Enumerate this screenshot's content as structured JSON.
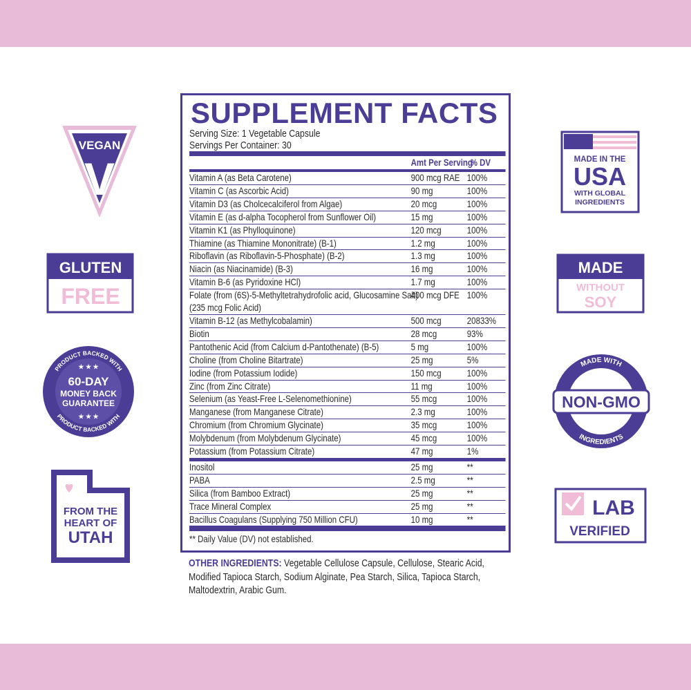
{
  "vegan": {
    "label": "VEGAN",
    "mark": "V"
  },
  "gluten_free": {
    "line1": "GLUTEN",
    "line2": "FREE"
  },
  "guarantee": {
    "ring_top": "PRODUCT BACKED WITH",
    "ring_bottom": "PRODUCT BACKED WITH",
    "stars_top": "★ ★ ★",
    "stars_bottom": "★ ★ ★",
    "lines": [
      "60-DAY",
      "MONEY BACK",
      "GUARANTEE"
    ]
  },
  "utah": {
    "lines": [
      "FROM THE",
      "HEART OF",
      "UTAH"
    ]
  },
  "usa": {
    "lines": [
      "MADE IN THE",
      "USA",
      "WITH GLOBAL",
      "INGREDIENTS"
    ]
  },
  "soy": {
    "lines": [
      "MADE",
      "WITHOUT",
      "SOY"
    ]
  },
  "non_gmo": {
    "ring_top": "MADE WITH",
    "label": "NON-GMO",
    "ring_bottom": "INGREDIENTS"
  },
  "lab": {
    "line1": "LAB",
    "line2": "VERIFIED"
  },
  "facts": {
    "title": "SUPPLEMENT FACTS",
    "serving_size": "Serving Size: 1 Vegetable Capsule",
    "servings_per_container": "Servings Per Container: 30",
    "header": {
      "amount": "Amt Per Serving",
      "dv": "% DV"
    },
    "rows": [
      {
        "name": "Vitamin A (as Beta Carotene)",
        "amount": "900 mcg RAE",
        "dv": "100%"
      },
      {
        "name": "Vitamin C (as Ascorbic Acid)",
        "amount": "90 mg",
        "dv": "100%"
      },
      {
        "name": "Vitamin D3 (as Cholcecalciferol from Algae)",
        "amount": "20 mcg",
        "dv": "100%"
      },
      {
        "name": "Vitamin E (as d-alpha Tocopherol from Sunflower Oil)",
        "amount": "15 mg",
        "dv": "100%"
      },
      {
        "name": "Vitamin K1 (as Phylloquinone)",
        "amount": "120 mcg",
        "dv": "100%"
      },
      {
        "name": "Thiamine (as Thiamine Mononitrate) (B-1)",
        "amount": "1.2 mg",
        "dv": "100%"
      },
      {
        "name": "Riboflavin (as Riboflavin-5-Phosphate) (B-2)",
        "amount": "1.3 mg",
        "dv": "100%"
      },
      {
        "name": "Niacin (as Niacinamide) (B-3)",
        "amount": "16 mg",
        "dv": "100%"
      },
      {
        "name": "Vitamin B-6 (as Pyridoxine HCl)",
        "amount": "1.7 mg",
        "dv": "100%"
      },
      {
        "name": "Folate (from (6S)-5-Methyltetrahydrofolic acid, Glucosamine Salt)",
        "detail": "(235 mcg Folic Acid)",
        "amount": "400 mcg DFE",
        "dv": "100%"
      },
      {
        "name": "Vitamin B-12 (as Methylcobalamin)",
        "amount": "500 mcg",
        "dv": "20833%"
      },
      {
        "name": "Biotin",
        "amount": "28 mcg",
        "dv": "93%"
      },
      {
        "name": "Pantothenic Acid (from Calcium d-Pantothenate) (B-5)",
        "amount": "5 mg",
        "dv": "100%"
      },
      {
        "name": "Choline (from Choline Bitartrate)",
        "amount": "25 mg",
        "dv": "5%"
      },
      {
        "name": "Iodine (from Potassium Iodide)",
        "amount": "150 mcg",
        "dv": "100%"
      },
      {
        "name": "Zinc (from Zinc Citrate)",
        "amount": "11 mg",
        "dv": "100%"
      },
      {
        "name": "Selenium (as Yeast-Free L-Selenomethionine)",
        "amount": "55 mcg",
        "dv": "100%"
      },
      {
        "name": "Manganese (from Manganese Citrate)",
        "amount": "2.3 mg",
        "dv": "100%"
      },
      {
        "name": "Chromium (from Chromium Glycinate)",
        "amount": "35 mcg",
        "dv": "100%"
      },
      {
        "name": "Molybdenum (from Molybdenum Glycinate)",
        "amount": "45 mcg",
        "dv": "100%"
      },
      {
        "name": "Potassium (from Potassium Citrate)",
        "amount": "47 mg",
        "dv": "1%"
      }
    ],
    "other_rows": [
      {
        "name": "Inositol",
        "amount": "25 mg",
        "dv": "**"
      },
      {
        "name": "PABA",
        "amount": "2.5 mg",
        "dv": "**"
      },
      {
        "name": "Silica (from Bamboo Extract)",
        "amount": "25 mg",
        "dv": "**"
      },
      {
        "name": "Trace Mineral Complex",
        "amount": "25 mg",
        "dv": "**"
      },
      {
        "name": "Bacillus Coagulans (Supplying 750 Million CFU)",
        "amount": "10 mg",
        "dv": "**"
      }
    ],
    "footnote": "** Daily Value (DV) not established.",
    "other_ingredients_label": "OTHER INGREDIENTS:",
    "other_ingredients": "Vegetable Cellulose Capsule, Cellulose, Stearic Acid, Modified Tapioca Starch, Sodium Alginate, Pea Starch, Silica, Tapioca Starch, Maltodextrin, Arabic Gum."
  }
}
